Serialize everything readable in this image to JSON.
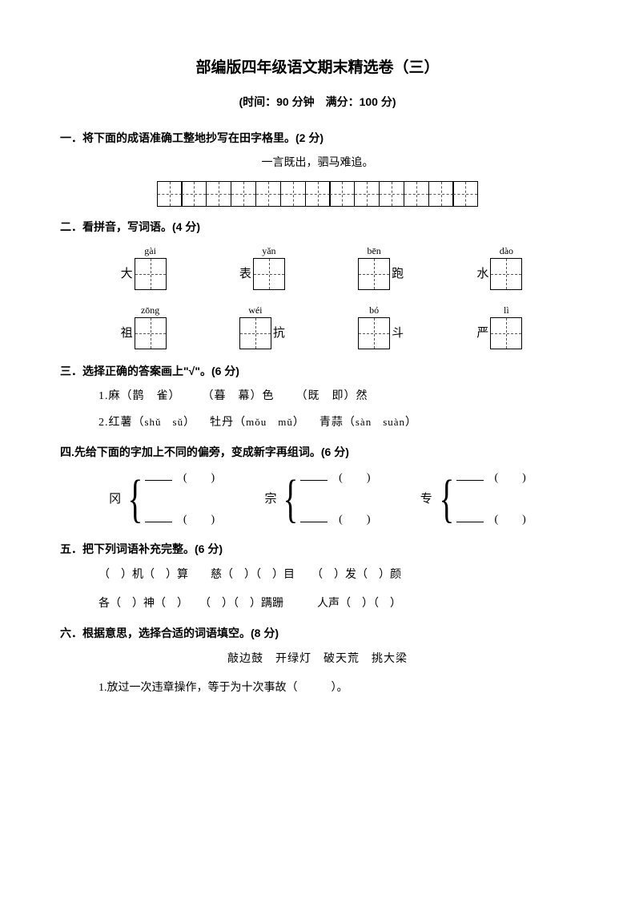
{
  "title": "部编版四年级语文期末精选卷（三）",
  "subtitle": "(时间：90 分钟　满分：100 分)",
  "q1": {
    "head": "一．将下面的成语准确工整地抄写在田字格里。(2 分)",
    "text": "一言既出，驷马难追。",
    "boxCount": 13
  },
  "q2": {
    "head": "二．看拼音，写词语。(4 分)",
    "row1": [
      {
        "pre": "大",
        "py": "gài"
      },
      {
        "pre": "表",
        "py": "yǎn"
      },
      {
        "py": "bēn",
        "post": "跑"
      },
      {
        "pre": "水",
        "py": "dào"
      }
    ],
    "row2": [
      {
        "pre": "祖",
        "py": "zōng"
      },
      {
        "py": "wéi",
        "post": "抗"
      },
      {
        "py": "bó",
        "post": "斗"
      },
      {
        "pre": "严",
        "py": "lì"
      }
    ]
  },
  "q3": {
    "head": "三．选择正确的答案画上\"√\"。(6 分)",
    "line1_a": "1.麻（鹊　雀）",
    "line1_b": "（暮　幕）色",
    "line1_c": "（既　即）然",
    "line2_a": "2.红薯（",
    "line2_a_py": "shǔ　sǔ",
    "line2_a_end": "）",
    "line2_b": "牡丹（",
    "line2_b_py": "mǒu　mǔ",
    "line2_b_end": "）",
    "line2_c": "青蒜（",
    "line2_c_py": "sàn　suàn",
    "line2_c_end": "）"
  },
  "q4": {
    "head": "四.先给下面的字加上不同的偏旁，变成新字再组词。(6 分)",
    "chars": [
      "冈",
      "宗",
      "专"
    ]
  },
  "q5": {
    "head": "五．把下列词语补充完整。(6 分)",
    "line1": "（　）机（　）算　　慈（　）（　）目　　（　）发（　）颜",
    "line2": "各（　）神（　）　　（　）（　）蹒跚　　　人声（　）（　）"
  },
  "q6": {
    "head": "六．根据意思，选择合适的词语填空。(8 分)",
    "words": "敲边鼓　开绿灯　破天荒　挑大梁",
    "line1": "1.放过一次违章操作，等于为十次事故（　　　）。"
  }
}
